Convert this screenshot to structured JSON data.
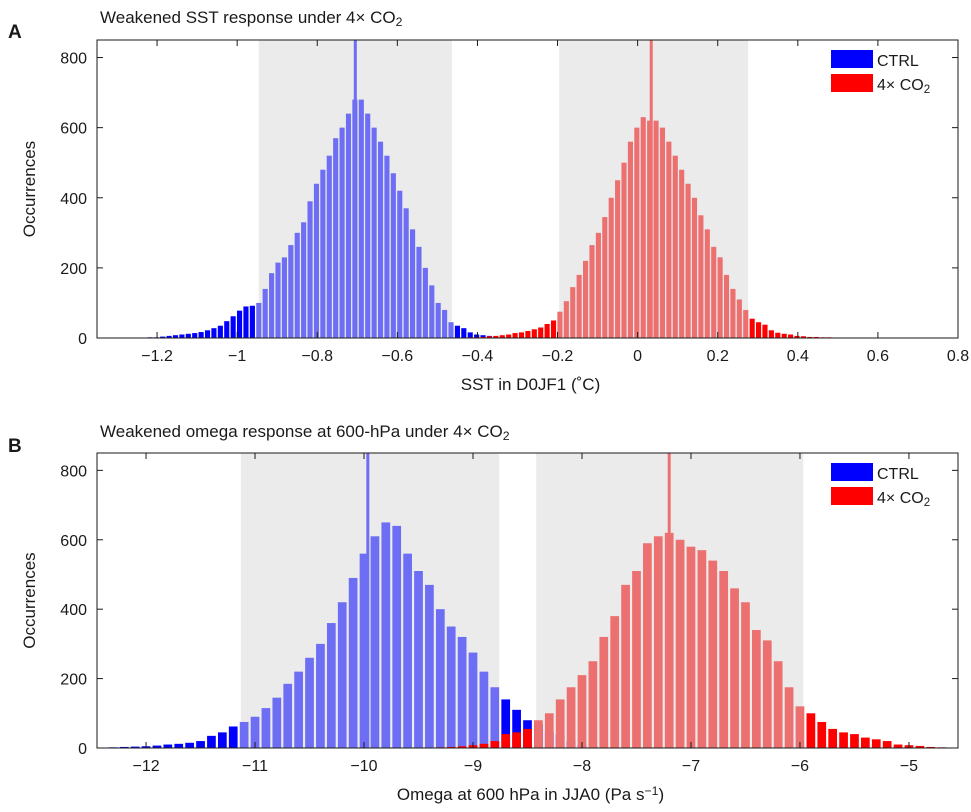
{
  "chart_data": [
    {
      "panel": "A",
      "type": "bar",
      "title": "Weakened SST response under 4× CO₂",
      "xlabel": "SST in D0JF1 (˚C)",
      "ylabel": "Occurrences",
      "xlim": [
        -1.35,
        0.8
      ],
      "ylim": [
        0,
        850
      ],
      "xticks": [
        -1.2,
        -1,
        -0.8,
        -0.6,
        -0.4,
        -0.2,
        0,
        0.2,
        0.4,
        0.6,
        0.8
      ],
      "xtick_labels": [
        "−1.2",
        "−1",
        "−0.8",
        "−0.6",
        "−0.4",
        "−0.2",
        "0",
        "0.2",
        "0.4",
        "0.6",
        "0.8"
      ],
      "yticks": [
        0,
        200,
        400,
        600,
        800
      ],
      "bin_width": 0.016,
      "grid": false,
      "legend_position": "top-right",
      "colors": {
        "CTRL": "#0000ff",
        "4x": "#ff0000",
        "CTRL_shaded": "#6e6ef5",
        "4x_shaded": "#ec7070",
        "shade": "#ebebeb"
      },
      "shaded_ranges": [
        [
          -0.946,
          -0.464
        ],
        [
          -0.196,
          0.276
        ]
      ],
      "mean_lines": [
        {
          "series": "CTRL",
          "x": -0.705
        },
        {
          "series": "4× CO₂",
          "x": 0.034
        }
      ],
      "series": [
        {
          "name": "CTRL",
          "x": [
            -1.25,
            -1.234,
            -1.218,
            -1.202,
            -1.186,
            -1.17,
            -1.154,
            -1.138,
            -1.122,
            -1.106,
            -1.09,
            -1.074,
            -1.058,
            -1.042,
            -1.026,
            -1.01,
            -0.994,
            -0.978,
            -0.962,
            -0.946,
            -0.93,
            -0.914,
            -0.898,
            -0.882,
            -0.866,
            -0.85,
            -0.834,
            -0.818,
            -0.802,
            -0.786,
            -0.77,
            -0.754,
            -0.738,
            -0.722,
            -0.706,
            -0.69,
            -0.674,
            -0.658,
            -0.642,
            -0.626,
            -0.61,
            -0.594,
            -0.578,
            -0.562,
            -0.546,
            -0.53,
            -0.514,
            -0.498,
            -0.482,
            -0.466,
            -0.45,
            -0.434,
            -0.418,
            -0.402,
            -0.386,
            -0.37,
            -0.354,
            -0.338,
            -0.322,
            -0.306,
            -0.29,
            -0.274,
            -0.258,
            -0.242,
            -0.226,
            -0.21
          ],
          "values": [
            1,
            1,
            2,
            2,
            4,
            6,
            8,
            10,
            12,
            14,
            17,
            22,
            28,
            35,
            48,
            62,
            78,
            90,
            92,
            100,
            140,
            185,
            215,
            230,
            265,
            300,
            330,
            390,
            440,
            480,
            520,
            570,
            600,
            640,
            680,
            680,
            640,
            600,
            560,
            520,
            470,
            420,
            370,
            310,
            260,
            200,
            150,
            100,
            80,
            45,
            35,
            28,
            16,
            10,
            8,
            6,
            4,
            3,
            2,
            2,
            1,
            1,
            1,
            0,
            1,
            0
          ]
        },
        {
          "name": "4× CO₂",
          "x": [
            -0.466,
            -0.45,
            -0.434,
            -0.418,
            -0.402,
            -0.386,
            -0.37,
            -0.354,
            -0.338,
            -0.322,
            -0.306,
            -0.29,
            -0.274,
            -0.258,
            -0.242,
            -0.226,
            -0.21,
            -0.194,
            -0.178,
            -0.162,
            -0.146,
            -0.13,
            -0.114,
            -0.098,
            -0.082,
            -0.066,
            -0.05,
            -0.034,
            -0.018,
            -0.002,
            0.014,
            0.03,
            0.046,
            0.062,
            0.078,
            0.094,
            0.11,
            0.126,
            0.142,
            0.158,
            0.174,
            0.19,
            0.206,
            0.222,
            0.238,
            0.254,
            0.27,
            0.286,
            0.302,
            0.318,
            0.334,
            0.35,
            0.366,
            0.382,
            0.398,
            0.414,
            0.43,
            0.446,
            0.462,
            0.478,
            0.494,
            0.51,
            0.526,
            0.542,
            0.558,
            0.574,
            0.59,
            0.606,
            0.622,
            0.638,
            0.654,
            0.67
          ],
          "values": [
            1,
            1,
            1,
            2,
            2,
            3,
            5,
            6,
            8,
            10,
            14,
            16,
            20,
            25,
            30,
            40,
            50,
            75,
            105,
            145,
            180,
            220,
            265,
            300,
            345,
            400,
            450,
            500,
            560,
            600,
            630,
            620,
            620,
            600,
            560,
            520,
            480,
            440,
            400,
            350,
            310,
            260,
            230,
            180,
            140,
            110,
            80,
            55,
            45,
            38,
            22,
            15,
            12,
            10,
            6,
            5,
            3,
            3,
            2,
            2,
            1,
            1,
            1,
            1,
            0,
            1,
            0,
            0,
            0,
            0,
            0,
            0
          ]
        }
      ]
    },
    {
      "panel": "B",
      "type": "bar",
      "title": "Weakened omega response at 600-hPa  under 4× CO₂",
      "xlabel": "Omega at 600 hPa in JJA0 (Pa s⁻¹)",
      "ylabel": "Occurrences",
      "xlim": [
        -12.45,
        -4.55
      ],
      "ylim": [
        0,
        850
      ],
      "xticks": [
        -12,
        -11,
        -10,
        -9,
        -8,
        -7,
        -6,
        -5
      ],
      "xtick_labels": [
        "−12",
        "−11",
        "−10",
        "−9",
        "−8",
        "−7",
        "−6",
        "−5"
      ],
      "yticks": [
        0,
        200,
        400,
        600,
        800
      ],
      "bin_width": 0.1,
      "grid": false,
      "legend_position": "top-right",
      "colors": {
        "CTRL": "#0000ff",
        "4x": "#ff0000",
        "CTRL_shaded": "#6e6ef5",
        "4x_shaded": "#ec7070",
        "shade": "#ebebeb"
      },
      "shaded_ranges": [
        [
          -11.13,
          -8.76
        ],
        [
          -8.42,
          -5.97
        ]
      ],
      "mean_lines": [
        {
          "series": "CTRL",
          "x": -9.965
        },
        {
          "series": "4× CO₂",
          "x": -7.2
        }
      ],
      "series": [
        {
          "name": "CTRL",
          "x": [
            -12.3,
            -12.2,
            -12.1,
            -12,
            -11.9,
            -11.8,
            -11.7,
            -11.6,
            -11.5,
            -11.4,
            -11.3,
            -11.2,
            -11.1,
            -11,
            -10.9,
            -10.8,
            -10.7,
            -10.6,
            -10.5,
            -10.4,
            -10.3,
            -10.2,
            -10.1,
            -10,
            -9.9,
            -9.8,
            -9.7,
            -9.6,
            -9.5,
            -9.4,
            -9.3,
            -9.2,
            -9.1,
            -9,
            -8.9,
            -8.8,
            -8.7,
            -8.6,
            -8.5,
            -8.4,
            -8.3,
            -8.2,
            -8.1,
            -8,
            -7.9,
            -7.8
          ],
          "values": [
            2,
            3,
            4,
            5,
            7,
            10,
            12,
            15,
            20,
            35,
            45,
            62,
            75,
            90,
            115,
            145,
            185,
            220,
            260,
            300,
            360,
            420,
            490,
            560,
            610,
            650,
            640,
            560,
            510,
            470,
            400,
            350,
            320,
            275,
            220,
            175,
            140,
            110,
            80,
            68,
            45,
            38,
            20,
            10,
            5,
            2
          ]
        },
        {
          "name": "4× CO₂",
          "x": [
            -9.4,
            -9.3,
            -9.2,
            -9.1,
            -9,
            -8.9,
            -8.8,
            -8.7,
            -8.6,
            -8.5,
            -8.4,
            -8.3,
            -8.2,
            -8.1,
            -8,
            -7.9,
            -7.8,
            -7.7,
            -7.6,
            -7.5,
            -7.4,
            -7.3,
            -7.2,
            -7.1,
            -7,
            -6.9,
            -6.8,
            -6.7,
            -6.6,
            -6.5,
            -6.4,
            -6.3,
            -6.2,
            -6.1,
            -6,
            -5.9,
            -5.8,
            -5.7,
            -5.6,
            -5.5,
            -5.4,
            -5.3,
            -5.2,
            -5.1,
            -5,
            -4.9,
            -4.8,
            -4.7
          ],
          "values": [
            1,
            2,
            3,
            5,
            8,
            12,
            20,
            40,
            45,
            55,
            80,
            100,
            140,
            175,
            210,
            250,
            320,
            380,
            470,
            510,
            590,
            610,
            620,
            600,
            580,
            570,
            540,
            510,
            460,
            420,
            340,
            310,
            250,
            175,
            120,
            100,
            75,
            55,
            45,
            40,
            30,
            25,
            20,
            10,
            8,
            6,
            3,
            2
          ]
        }
      ]
    }
  ],
  "legend": {
    "ctrl_label": "CTRL",
    "co2_label": "4× CO₂"
  }
}
